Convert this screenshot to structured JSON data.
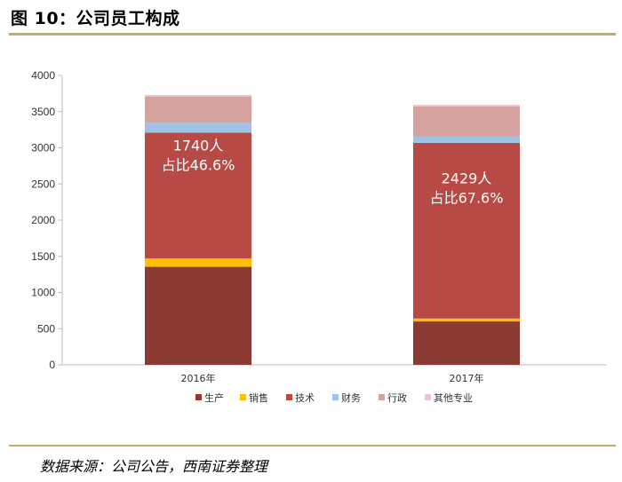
{
  "figure": {
    "title": "图 10：公司员工构成",
    "source": "数据来源：公司公告，西南证券整理"
  },
  "chart_data": {
    "type": "bar",
    "stacked": true,
    "categories": [
      "2016年",
      "2017年"
    ],
    "ylim": [
      0,
      4000
    ],
    "yticks": [
      0,
      500,
      1000,
      1500,
      2000,
      2500,
      3000,
      3500,
      4000
    ],
    "grid": false,
    "legend_position": "bottom",
    "series": [
      {
        "name": "生产",
        "color": "#8b3a34",
        "values": [
          1355,
          600
        ]
      },
      {
        "name": "销售",
        "color": "#ffc000",
        "values": [
          115,
          40
        ]
      },
      {
        "name": "技术",
        "color": "#b84a45",
        "values": [
          1740,
          2429
        ]
      },
      {
        "name": "财务",
        "color": "#9dc3e6",
        "values": [
          135,
          85
        ]
      },
      {
        "name": "行政",
        "color": "#d6a2a0",
        "values": [
          365,
          420
        ]
      },
      {
        "name": "其他专业",
        "color": "#ecc6c4",
        "values": [
          20,
          20
        ]
      }
    ],
    "annotations": [
      {
        "category": "2016年",
        "line1": "1740人",
        "line2": "占比46.6%"
      },
      {
        "category": "2017年",
        "line1": "2429人",
        "line2": "占比67.6%"
      }
    ]
  }
}
